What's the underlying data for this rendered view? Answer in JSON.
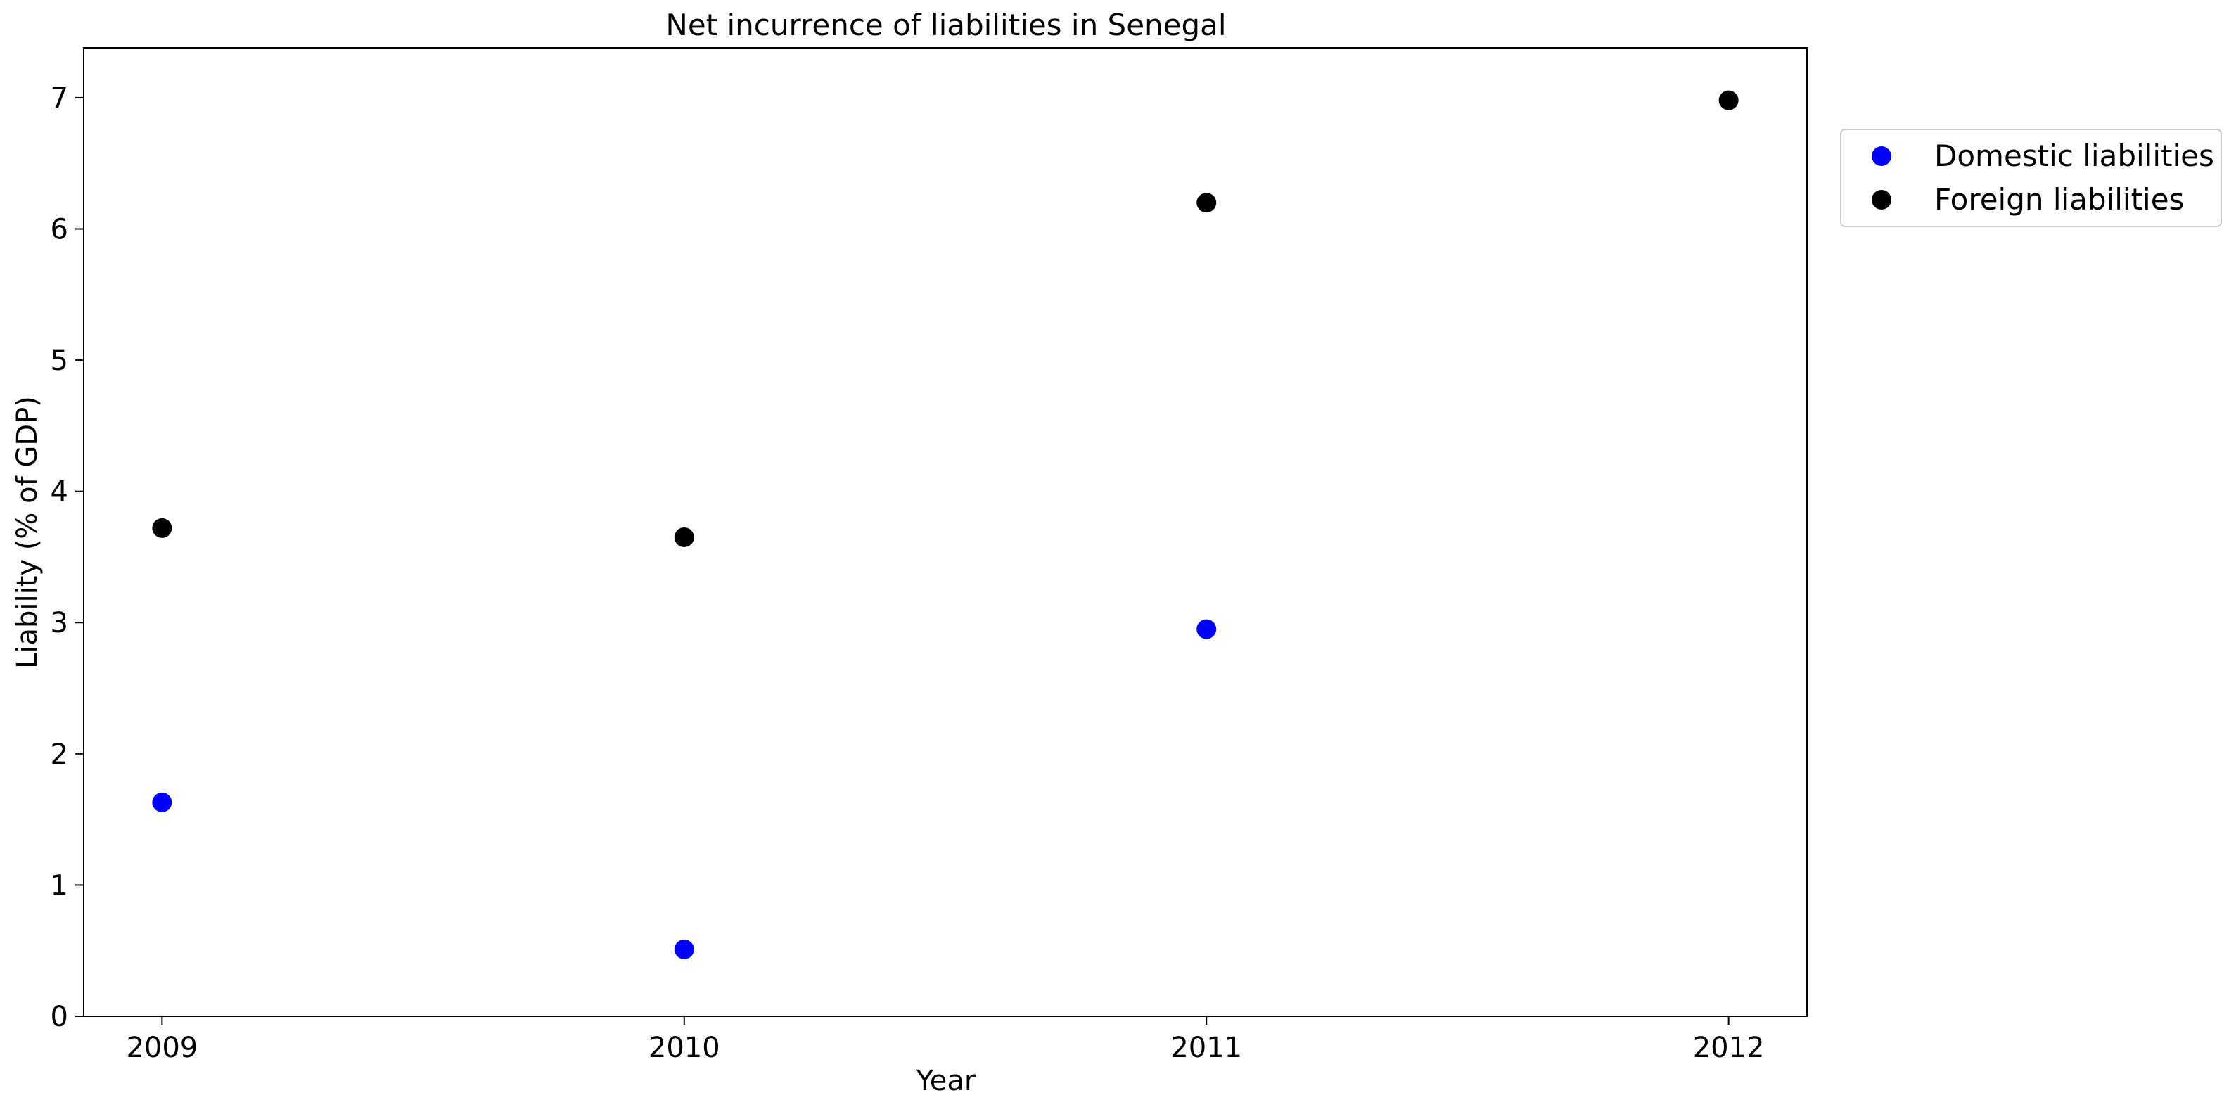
{
  "chart_data": {
    "type": "scatter",
    "title": "Net incurrence of liabilities in Senegal",
    "xlabel": "Year",
    "ylabel": "Liability (% of GDP)",
    "x": [
      "2009",
      "2010",
      "2011",
      "2012"
    ],
    "xlim": [
      2008.85,
      2012.15
    ],
    "ylim": [
      0,
      7.38
    ],
    "yticks": [
      0,
      1,
      2,
      3,
      4,
      5,
      6,
      7
    ],
    "grid": false,
    "legend_position": "outside top-right",
    "series": [
      {
        "name": "Domestic liabilities",
        "color": "#0000ff",
        "values": [
          1.63,
          0.51,
          2.95,
          null
        ]
      },
      {
        "name": "Foreign liabilities",
        "color": "#000000",
        "values": [
          3.72,
          3.65,
          6.2,
          6.98
        ]
      }
    ]
  }
}
